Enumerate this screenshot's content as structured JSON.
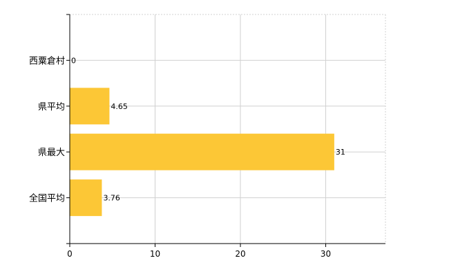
{
  "chart_data": {
    "type": "bar",
    "orientation": "horizontal",
    "categories": [
      "西粟倉村",
      "県平均",
      "県最大",
      "全国平均"
    ],
    "values": [
      0,
      4.65,
      31,
      3.76
    ],
    "value_labels": [
      "0",
      "4.65",
      "31",
      "3.76"
    ],
    "xlim": [
      0,
      37
    ],
    "xticks": [
      0,
      10,
      20,
      30
    ],
    "xtick_labels": [
      "0",
      "10",
      "20",
      "30"
    ],
    "grid": true,
    "legend": "none",
    "bar_color": "#fcc736",
    "grid_color": "#d0d0d0",
    "axis_color": "#000000"
  }
}
